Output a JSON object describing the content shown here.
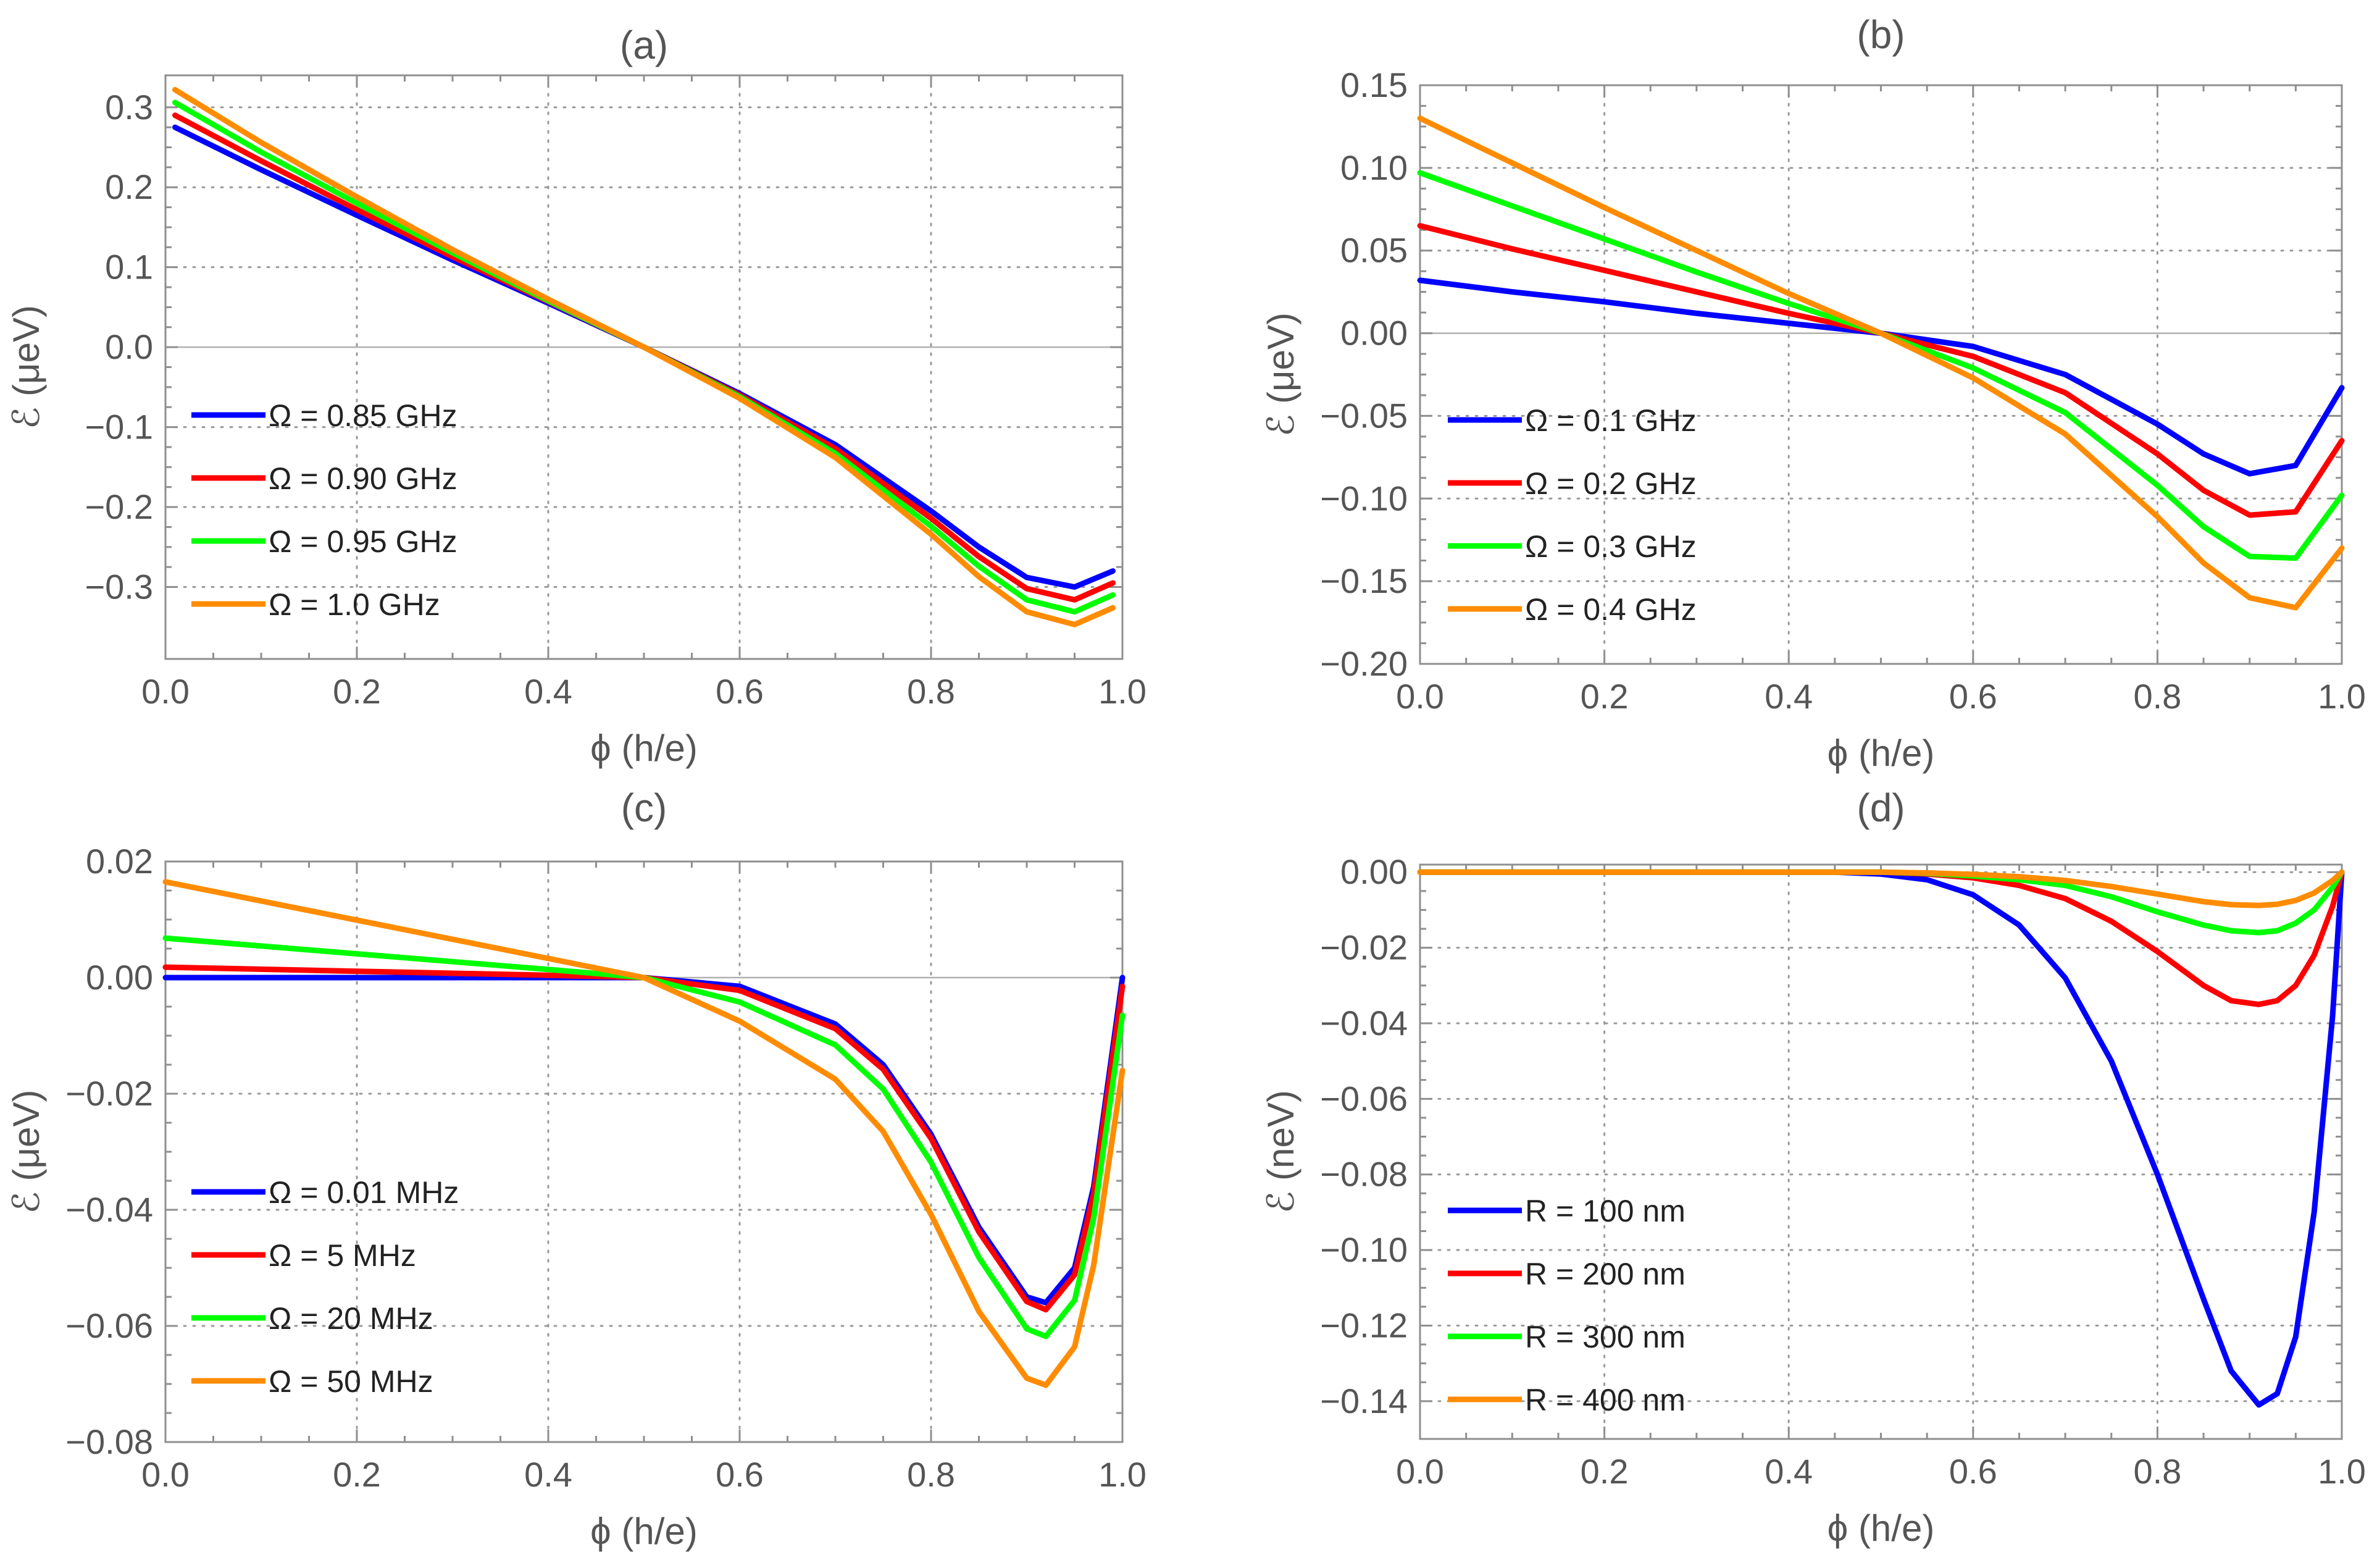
{
  "colors": {
    "blue": "#0000ff",
    "red": "#ff0000",
    "green": "#00ff00",
    "orange": "#ff8c00"
  },
  "chart_data": [
    {
      "type": "line",
      "title": "(a)",
      "xlabel": "ϕ (h/e)",
      "ylabel": "ℰ (μeV)",
      "xlim": [
        0,
        1
      ],
      "ylim": [
        -0.39,
        0.34
      ],
      "x_ticks": [
        0,
        0.2,
        0.4,
        0.6,
        0.8,
        1.0
      ],
      "x_tick_labels": [
        "0.0",
        "0.2",
        "0.4",
        "0.6",
        "0.8",
        "1.0"
      ],
      "y_ticks": [
        -0.3,
        -0.2,
        -0.1,
        0,
        0.1,
        0.2,
        0.3
      ],
      "y_tick_labels": [
        "−0.3",
        "−0.2",
        "−0.1",
        "0.0",
        "0.1",
        "0.2",
        "0.3"
      ],
      "legend_position": "center-left",
      "series": [
        {
          "name": "Ω = 0.85 GHz",
          "color": "#0000ff",
          "x": [
            0.01,
            0.1,
            0.2,
            0.3,
            0.4,
            0.5,
            0.6,
            0.7,
            0.8,
            0.85,
            0.9,
            0.95,
            0.99
          ],
          "y": [
            0.275,
            0.222,
            0.165,
            0.109,
            0.055,
            0.0,
            -0.058,
            -0.122,
            -0.205,
            -0.25,
            -0.288,
            -0.3,
            -0.28
          ]
        },
        {
          "name": "Ω = 0.90 GHz",
          "color": "#ff0000",
          "x": [
            0.01,
            0.1,
            0.2,
            0.3,
            0.4,
            0.5,
            0.6,
            0.7,
            0.8,
            0.85,
            0.9,
            0.95,
            0.99
          ],
          "y": [
            0.29,
            0.233,
            0.172,
            0.113,
            0.057,
            0.0,
            -0.06,
            -0.127,
            -0.214,
            -0.262,
            -0.302,
            -0.316,
            -0.295
          ]
        },
        {
          "name": "Ω = 0.95 GHz",
          "color": "#00ff00",
          "x": [
            0.01,
            0.1,
            0.2,
            0.3,
            0.4,
            0.5,
            0.6,
            0.7,
            0.8,
            0.85,
            0.9,
            0.95,
            0.99
          ],
          "y": [
            0.306,
            0.244,
            0.18,
            0.118,
            0.058,
            0.0,
            -0.062,
            -0.133,
            -0.224,
            -0.274,
            -0.316,
            -0.331,
            -0.31
          ]
        },
        {
          "name": "Ω = 1.0 GHz",
          "color": "#ff8c00",
          "x": [
            0.01,
            0.1,
            0.2,
            0.3,
            0.4,
            0.5,
            0.6,
            0.7,
            0.8,
            0.85,
            0.9,
            0.95,
            0.99
          ],
          "y": [
            0.322,
            0.256,
            0.188,
            0.122,
            0.06,
            0.0,
            -0.064,
            -0.138,
            -0.234,
            -0.287,
            -0.331,
            -0.347,
            -0.326
          ]
        }
      ]
    },
    {
      "type": "line",
      "title": "(b)",
      "xlabel": "ϕ (h/e)",
      "ylabel": "ℰ (μeV)",
      "xlim": [
        0,
        1
      ],
      "ylim": [
        -0.2,
        0.15
      ],
      "x_ticks": [
        0,
        0.2,
        0.4,
        0.6,
        0.8,
        1.0
      ],
      "x_tick_labels": [
        "0.0",
        "0.2",
        "0.4",
        "0.6",
        "0.8",
        "1.0"
      ],
      "y_ticks": [
        -0.2,
        -0.15,
        -0.1,
        -0.05,
        0,
        0.05,
        0.1,
        0.15
      ],
      "y_tick_labels": [
        "−0.20",
        "−0.15",
        "−0.10",
        "−0.05",
        "0.00",
        "0.05",
        "0.10",
        "0.15"
      ],
      "legend_position": "lower-left",
      "series": [
        {
          "name": "Ω = 0.1 GHz",
          "color": "#0000ff",
          "x": [
            0.0,
            0.1,
            0.2,
            0.3,
            0.4,
            0.5,
            0.6,
            0.7,
            0.8,
            0.85,
            0.9,
            0.95,
            1.0
          ],
          "y": [
            0.032,
            0.025,
            0.019,
            0.012,
            0.006,
            0.0,
            -0.008,
            -0.025,
            -0.055,
            -0.073,
            -0.085,
            -0.08,
            -0.033
          ]
        },
        {
          "name": "Ω = 0.2 GHz",
          "color": "#ff0000",
          "x": [
            0.0,
            0.1,
            0.2,
            0.3,
            0.4,
            0.5,
            0.6,
            0.7,
            0.8,
            0.85,
            0.9,
            0.95,
            1.0
          ],
          "y": [
            0.065,
            0.051,
            0.038,
            0.025,
            0.012,
            0.0,
            -0.014,
            -0.036,
            -0.073,
            -0.095,
            -0.11,
            -0.108,
            -0.065
          ]
        },
        {
          "name": "Ω = 0.3 GHz",
          "color": "#00ff00",
          "x": [
            0.0,
            0.1,
            0.2,
            0.3,
            0.4,
            0.5,
            0.6,
            0.7,
            0.8,
            0.85,
            0.9,
            0.95,
            1.0
          ],
          "y": [
            0.097,
            0.077,
            0.057,
            0.037,
            0.018,
            0.0,
            -0.021,
            -0.048,
            -0.092,
            -0.117,
            -0.135,
            -0.136,
            -0.098
          ]
        },
        {
          "name": "Ω = 0.4 GHz",
          "color": "#ff8c00",
          "x": [
            0.0,
            0.1,
            0.2,
            0.3,
            0.4,
            0.5,
            0.6,
            0.7,
            0.8,
            0.85,
            0.9,
            0.95,
            1.0
          ],
          "y": [
            0.13,
            0.103,
            0.076,
            0.05,
            0.024,
            0.0,
            -0.027,
            -0.061,
            -0.111,
            -0.139,
            -0.16,
            -0.166,
            -0.13
          ]
        }
      ]
    },
    {
      "type": "line",
      "title": "(c)",
      "xlabel": "ϕ (h/e)",
      "ylabel": "ℰ (μeV)",
      "xlim": [
        0,
        1
      ],
      "ylim": [
        -0.08,
        0.02
      ],
      "x_ticks": [
        0,
        0.2,
        0.4,
        0.6,
        0.8,
        1.0
      ],
      "x_tick_labels": [
        "0.0",
        "0.2",
        "0.4",
        "0.6",
        "0.8",
        "1.0"
      ],
      "y_ticks": [
        -0.08,
        -0.06,
        -0.04,
        -0.02,
        0,
        0.02
      ],
      "y_tick_labels": [
        "−0.08",
        "−0.06",
        "−0.04",
        "−0.02",
        "0.00",
        "0.02"
      ],
      "legend_position": "lower-left",
      "series": [
        {
          "name": "Ω = 0.01 MHz",
          "color": "#0000ff",
          "x": [
            0.0,
            0.2,
            0.4,
            0.5,
            0.6,
            0.7,
            0.75,
            0.8,
            0.85,
            0.9,
            0.92,
            0.95,
            0.97,
            1.0
          ],
          "y": [
            0.0,
            0.0,
            0.0,
            0.0,
            -0.0015,
            -0.008,
            -0.015,
            -0.027,
            -0.043,
            -0.055,
            -0.056,
            -0.05,
            -0.036,
            0.0
          ]
        },
        {
          "name": "Ω = 5 MHz",
          "color": "#ff0000",
          "x": [
            0.0,
            0.2,
            0.4,
            0.5,
            0.6,
            0.7,
            0.75,
            0.8,
            0.85,
            0.9,
            0.92,
            0.95,
            0.97,
            1.0
          ],
          "y": [
            0.0018,
            0.0011,
            0.0004,
            0.0,
            -0.0022,
            -0.0088,
            -0.0158,
            -0.0277,
            -0.0438,
            -0.0558,
            -0.0572,
            -0.0512,
            -0.0372,
            -0.0015
          ]
        },
        {
          "name": "Ω = 20 MHz",
          "color": "#00ff00",
          "x": [
            0.0,
            0.2,
            0.4,
            0.5,
            0.6,
            0.7,
            0.75,
            0.8,
            0.85,
            0.9,
            0.92,
            0.95,
            0.97,
            1.0
          ],
          "y": [
            0.0068,
            0.0041,
            0.0014,
            0.0,
            -0.0042,
            -0.0116,
            -0.0192,
            -0.0318,
            -0.0482,
            -0.0605,
            -0.0618,
            -0.0556,
            -0.0414,
            -0.0065
          ]
        },
        {
          "name": "Ω = 50 MHz",
          "color": "#ff8c00",
          "x": [
            0.0,
            0.2,
            0.4,
            0.5,
            0.6,
            0.7,
            0.75,
            0.8,
            0.85,
            0.9,
            0.92,
            0.95,
            0.97,
            1.0
          ],
          "y": [
            0.0165,
            0.0099,
            0.0033,
            0.0,
            -0.0075,
            -0.0175,
            -0.0265,
            -0.0408,
            -0.0575,
            -0.069,
            -0.0702,
            -0.0636,
            -0.0495,
            -0.016
          ]
        }
      ]
    },
    {
      "type": "line",
      "title": "(d)",
      "xlabel": "ϕ (h/e)",
      "ylabel": "ℰ (neV)",
      "xlim": [
        0,
        1
      ],
      "ylim": [
        -0.15,
        0.002
      ],
      "x_ticks": [
        0,
        0.2,
        0.4,
        0.6,
        0.8,
        1.0
      ],
      "x_tick_labels": [
        "0.0",
        "0.2",
        "0.4",
        "0.6",
        "0.8",
        "1.0"
      ],
      "y_ticks": [
        -0.14,
        -0.12,
        -0.1,
        -0.08,
        -0.06,
        -0.04,
        -0.02,
        0
      ],
      "y_tick_labels": [
        "−0.14",
        "−0.12",
        "−0.10",
        "−0.08",
        "−0.06",
        "−0.04",
        "−0.02",
        "0.00"
      ],
      "legend_position": "lower-left",
      "series": [
        {
          "name": "R = 100 nm",
          "color": "#0000ff",
          "x": [
            0.0,
            0.3,
            0.45,
            0.5,
            0.55,
            0.6,
            0.65,
            0.7,
            0.75,
            0.8,
            0.85,
            0.88,
            0.91,
            0.93,
            0.95,
            0.97,
            0.99,
            1.0
          ],
          "y": [
            0.0,
            0.0,
            0.0,
            -0.0005,
            -0.002,
            -0.006,
            -0.014,
            -0.028,
            -0.05,
            -0.08,
            -0.113,
            -0.132,
            -0.141,
            -0.138,
            -0.123,
            -0.09,
            -0.038,
            0.0
          ]
        },
        {
          "name": "R = 200 nm",
          "color": "#ff0000",
          "x": [
            0.0,
            0.3,
            0.45,
            0.5,
            0.55,
            0.6,
            0.65,
            0.7,
            0.75,
            0.8,
            0.85,
            0.88,
            0.91,
            0.93,
            0.95,
            0.97,
            0.99,
            1.0
          ],
          "y": [
            0.0,
            0.0,
            0.0,
            0.0,
            -0.0005,
            -0.0015,
            -0.0035,
            -0.007,
            -0.013,
            -0.021,
            -0.03,
            -0.034,
            -0.035,
            -0.034,
            -0.03,
            -0.022,
            -0.009,
            0.0
          ]
        },
        {
          "name": "R = 300 nm",
          "color": "#00ff00",
          "x": [
            0.0,
            0.3,
            0.45,
            0.5,
            0.55,
            0.6,
            0.65,
            0.7,
            0.75,
            0.8,
            0.85,
            0.88,
            0.91,
            0.93,
            0.95,
            0.97,
            0.99,
            1.0
          ],
          "y": [
            0.0,
            0.0,
            0.0,
            0.0,
            -0.0003,
            -0.001,
            -0.002,
            -0.0035,
            -0.0065,
            -0.0105,
            -0.014,
            -0.0155,
            -0.016,
            -0.0155,
            -0.0135,
            -0.01,
            -0.004,
            0.0
          ]
        },
        {
          "name": "R = 400 nm",
          "color": "#ff8c00",
          "x": [
            0.0,
            0.3,
            0.45,
            0.5,
            0.55,
            0.6,
            0.65,
            0.7,
            0.75,
            0.8,
            0.85,
            0.88,
            0.91,
            0.93,
            0.95,
            0.97,
            0.99,
            1.0
          ],
          "y": [
            0.0,
            0.0,
            0.0,
            0.0,
            -0.0002,
            -0.0006,
            -0.0012,
            -0.0022,
            -0.0038,
            -0.0058,
            -0.0078,
            -0.0086,
            -0.0088,
            -0.0085,
            -0.0075,
            -0.0055,
            -0.0022,
            0.0
          ]
        }
      ]
    }
  ]
}
